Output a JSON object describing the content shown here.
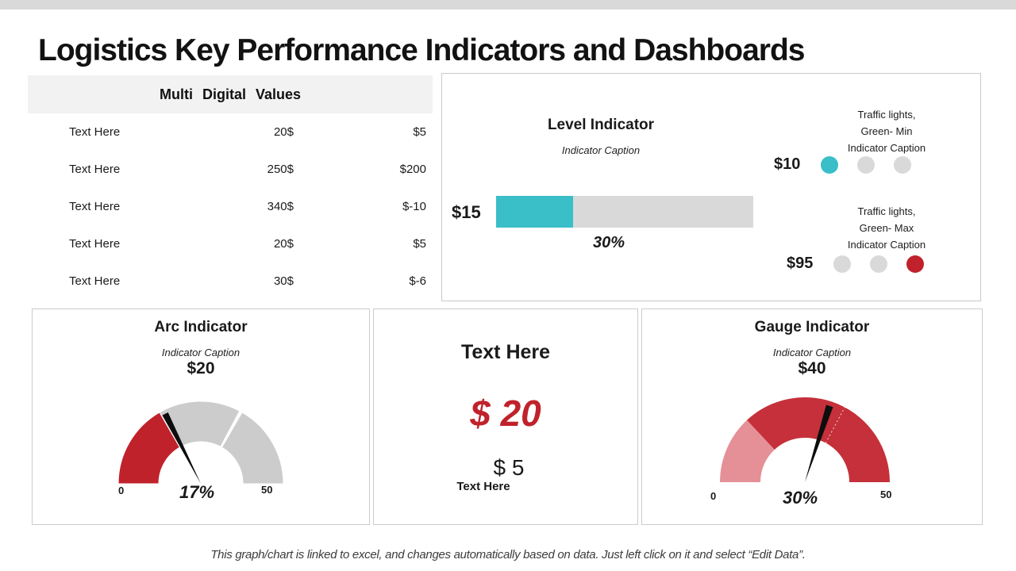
{
  "page": {
    "title": "Logistics Key Performance Indicators and Dashboards",
    "footer_note": "This graph/chart is linked to excel, and changes automatically based on data. Just left click on it and select “Edit Data”."
  },
  "colors": {
    "teal": "#3abec8",
    "red": "#c0222c",
    "red_dark": "#c5303a",
    "red_light": "#e59097",
    "track_gray": "#d9d9d9",
    "table_header_gray": "#f2f2f2",
    "topbar_gray": "#d9d9d9"
  },
  "table": {
    "title": "Multi Digital Values",
    "rows": [
      {
        "label": "Text Here",
        "value1": "20$",
        "value2": "$5"
      },
      {
        "label": "Text Here",
        "value1": "250$",
        "value2": "$200"
      },
      {
        "label": "Text Here",
        "value1": "340$",
        "value2": "$-10"
      },
      {
        "label": "Text Here",
        "value1": "20$",
        "value2": "$5"
      },
      {
        "label": "Text Here",
        "value1": "30$",
        "value2": "$-6"
      }
    ]
  },
  "level": {
    "title": "Level Indicator",
    "caption": "Indicator Caption",
    "bar_label": "$15",
    "percent": 30,
    "percent_label": "30%",
    "traffic_min": {
      "caption": "Traffic lights,\nGreen- Min\nIndicator Caption",
      "value": "$10",
      "lights": [
        "teal",
        "gray",
        "gray"
      ]
    },
    "traffic_max": {
      "caption": "Traffic lights,\nGreen- Max\nIndicator Caption",
      "value": "$95",
      "lights": [
        "gray",
        "gray",
        "red"
      ]
    }
  },
  "arc": {
    "title": "Arc Indicator",
    "caption": "Indicator Caption",
    "value": "$20",
    "percent_label": "17%",
    "min_label": "0",
    "max_label": "50"
  },
  "big_number": {
    "title": "Text Here",
    "primary": "$ 20",
    "secondary": "$ 5",
    "secondary_label": "Text Here"
  },
  "gauge": {
    "title": "Gauge Indicator",
    "caption": "Indicator Caption",
    "value": "$40",
    "percent_label": "30%",
    "min_label": "0",
    "max_label": "50"
  },
  "chart_data": [
    {
      "type": "table",
      "title": "Multi Digital Values",
      "columns": [
        "label",
        "value1",
        "value2"
      ],
      "rows": [
        [
          "Text Here",
          "20$",
          "$5"
        ],
        [
          "Text Here",
          "250$",
          "$200"
        ],
        [
          "Text Here",
          "340$",
          "$-10"
        ],
        [
          "Text Here",
          "20$",
          "$5"
        ],
        [
          "Text Here",
          "30$",
          "$-6"
        ]
      ]
    },
    {
      "type": "bar",
      "variant": "horizontal-level-indicator",
      "title": "Level Indicator",
      "subtitle": "Indicator Caption",
      "categories": [
        "$15"
      ],
      "values": [
        30
      ],
      "value_labels": [
        "30%"
      ],
      "xlim": [
        0,
        100
      ],
      "bar_color": "#3abec8",
      "track_color": "#d9d9d9",
      "annotations": [
        {
          "label": "$10",
          "legend": "Traffic lights, Green- Min Indicator Caption",
          "lights": [
            "teal",
            "gray",
            "gray"
          ]
        },
        {
          "label": "$95",
          "legend": "Traffic lights, Green- Max Indicator Caption",
          "lights": [
            "gray",
            "gray",
            "red"
          ]
        }
      ]
    },
    {
      "type": "pie",
      "variant": "half-donut-gauge",
      "title": "Arc Indicator",
      "subtitle": "Indicator Caption",
      "value_label": "$20",
      "percent": 17,
      "axis_range": [
        0,
        50
      ],
      "tick_labels": [
        "0",
        "50"
      ],
      "segment_colors": [
        "#c0222c",
        "#cccccc",
        "#cccccc"
      ]
    },
    {
      "type": "pie",
      "variant": "half-donut-gauge",
      "title": "Gauge Indicator",
      "subtitle": "Indicator Caption",
      "value_label": "$40",
      "percent": 30,
      "axis_range": [
        0,
        50
      ],
      "tick_labels": [
        "0",
        "50"
      ],
      "segment_colors": [
        "#e59097",
        "#c5303a"
      ]
    }
  ]
}
